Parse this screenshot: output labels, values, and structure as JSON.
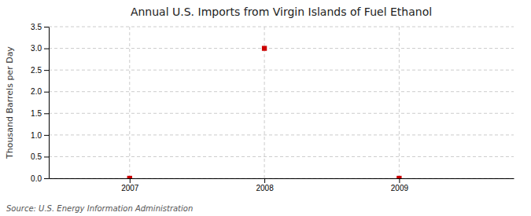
{
  "chart_data": {
    "type": "scatter",
    "title": "Annual U.S. Imports from Virgin Islands of Fuel Ethanol",
    "y_label": "Thousand Barrels per Day",
    "annotations": [
      "Source: U.S. Energy Information Administration"
    ],
    "x": [
      2007,
      2008,
      2009
    ],
    "values": [
      0.0,
      3.0,
      0.0
    ],
    "color": "#cc0000",
    "marker": "square",
    "xlim": [
      2006.4,
      2009.85
    ],
    "xticks": [
      2007,
      2008,
      2009
    ],
    "ylim": [
      0.0,
      3.5
    ],
    "yticks": [
      {
        "value": 0.0,
        "label": "0.0"
      },
      0.5,
      {
        "value": 1.0,
        "label": "1.0"
      },
      1.5,
      {
        "value": 2.0,
        "label": "2.0"
      },
      2.5,
      {
        "value": 3.0,
        "label": "3.0"
      },
      3.5
    ],
    "grid": true
  }
}
